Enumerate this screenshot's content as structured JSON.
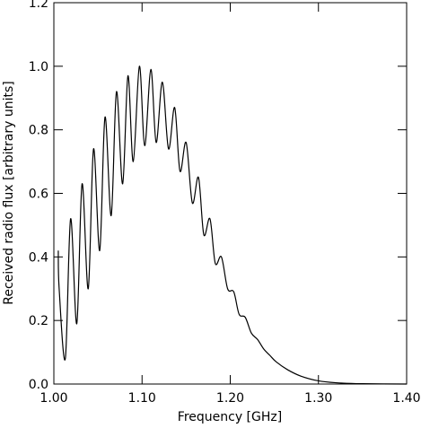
{
  "chart_data": {
    "type": "line",
    "x_label": "Frequency [GHz]",
    "y_label": "Received radio flux [arbitrary units]",
    "x": [
      1.005,
      1.006,
      1.013,
      1.019,
      1.026,
      1.032,
      1.039,
      1.045,
      1.052,
      1.058,
      1.065,
      1.071,
      1.078,
      1.084,
      1.09,
      1.097,
      1.103,
      1.11,
      1.116,
      1.123,
      1.13,
      1.137,
      1.143,
      1.15,
      1.157,
      1.164,
      1.17,
      1.177,
      1.183,
      1.19,
      1.197,
      1.204,
      1.21,
      1.217,
      1.224,
      1.231,
      1.238,
      1.245,
      1.252,
      1.265,
      1.28,
      1.3,
      1.32,
      1.35,
      1.4
    ],
    "series": [
      {
        "color": "#000000",
        "values": [
          0.42,
          0.3,
          0.08,
          0.52,
          0.19,
          0.63,
          0.3,
          0.74,
          0.42,
          0.84,
          0.53,
          0.92,
          0.63,
          0.97,
          0.7,
          1.0,
          0.75,
          0.99,
          0.76,
          0.95,
          0.74,
          0.87,
          0.67,
          0.76,
          0.57,
          0.65,
          0.47,
          0.52,
          0.38,
          0.4,
          0.3,
          0.29,
          0.22,
          0.21,
          0.16,
          0.14,
          0.11,
          0.09,
          0.07,
          0.045,
          0.025,
          0.01,
          0.004,
          0.001,
          0
        ]
      }
    ],
    "xlim": [
      1.0,
      1.4
    ],
    "xticks": [
      {
        "value": 1.0,
        "label": "1.00"
      },
      {
        "value": 1.1,
        "label": "1.10"
      },
      {
        "value": 1.2,
        "label": "1.20"
      },
      {
        "value": 1.3,
        "label": "1.30"
      },
      {
        "value": 1.4,
        "label": "1.40"
      }
    ],
    "ylim": [
      0,
      1.2
    ],
    "yticks": [
      {
        "value": 0,
        "label": "0.0"
      },
      0.2,
      0.4,
      0.6,
      0.8,
      {
        "value": 1,
        "label": "1.0"
      },
      1.2
    ]
  }
}
